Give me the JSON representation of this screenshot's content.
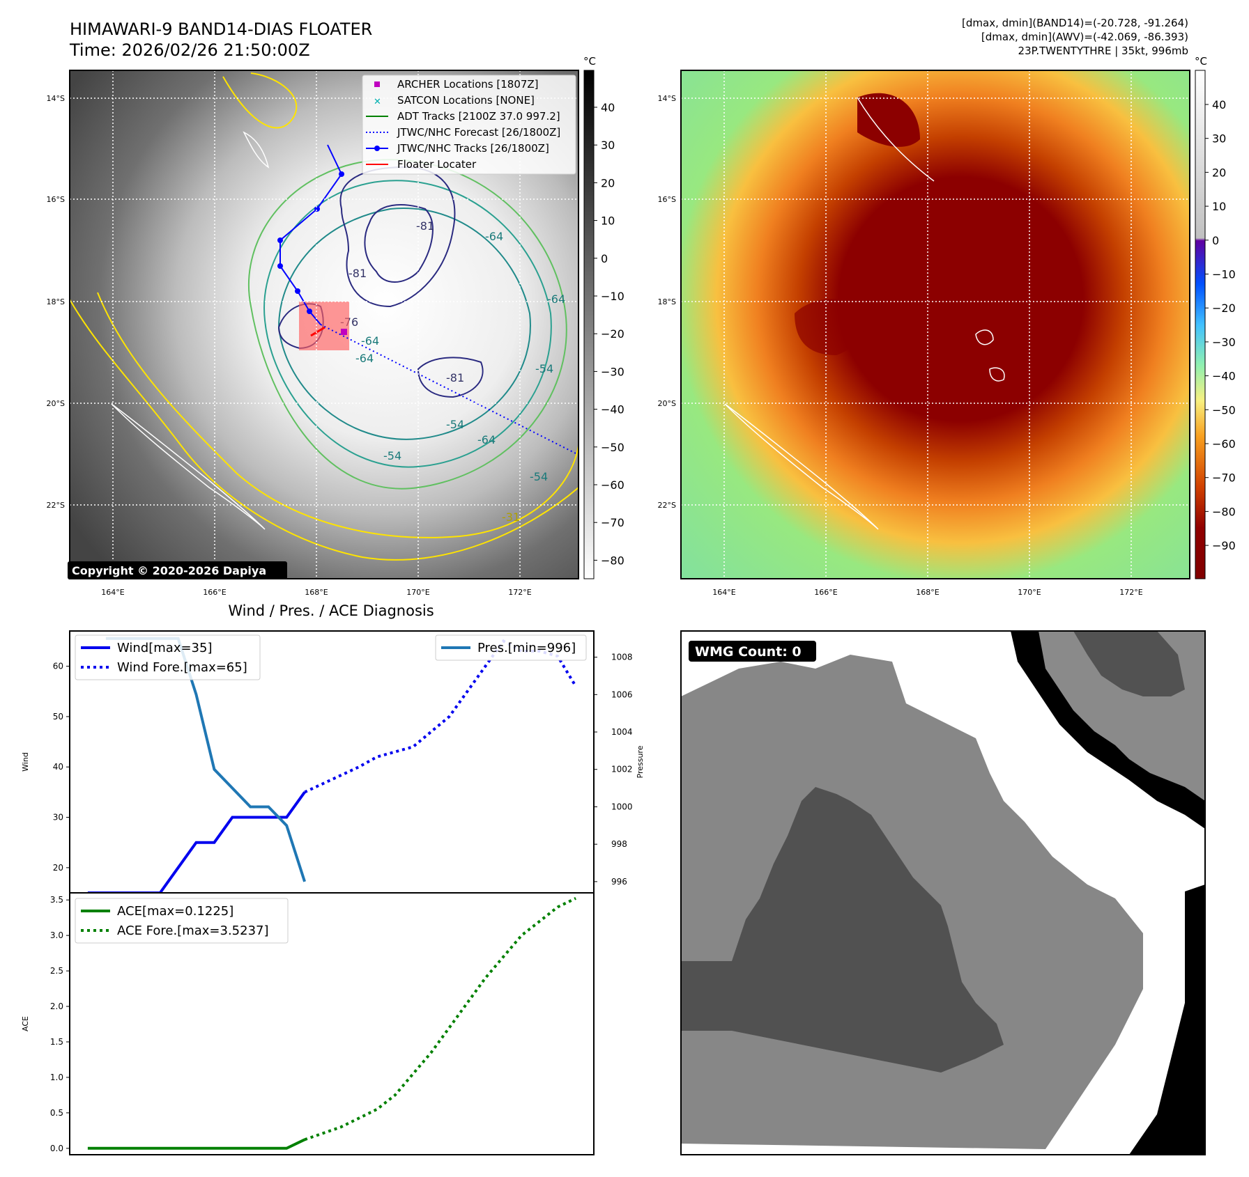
{
  "header": {
    "title": "HIMAWARI-9 BAND14-DIAS FLOATER",
    "time": "Time: 2026/02/26 21:50:00Z",
    "stats_band14": "[dmax, dmin](BAND14)=(-20.728, -91.264)",
    "stats_awv": "[dmax, dmin](AWV)=(-42.069, -86.393)",
    "storm": "23P.TWENTYTHRE | 35kt, 996mb"
  },
  "maps": {
    "lat_ticks": [
      "14°S",
      "16°S",
      "18°S",
      "20°S",
      "22°S"
    ],
    "lon_ticks": [
      "164°E",
      "166°E",
      "168°E",
      "170°E",
      "172°E"
    ],
    "copyright": "Copyright © 2020-2026 Dapiya",
    "contour_labels": [
      "-81",
      "-64",
      "-64",
      "-54",
      "-64",
      "-81",
      "-64",
      "-54",
      "-31",
      "-76",
      "-64",
      "-54",
      "-81",
      "-54"
    ],
    "legend": [
      {
        "label": "ARCHER Locations [1807Z]",
        "color": "#c000c0",
        "marker": "square"
      },
      {
        "label": "SATCON Locations [NONE]",
        "color": "#00b0b0",
        "marker": "x"
      },
      {
        "label": "ADT Tracks [2100Z 37.0 997.2]",
        "color": "#008000",
        "marker": "line"
      },
      {
        "label": "JTWC/NHC Forecast [26/1800Z]",
        "color": "#0000ff",
        "marker": "dotted"
      },
      {
        "label": "JTWC/NHC Tracks [26/1800Z]",
        "color": "#0000ff",
        "marker": "line-dot"
      },
      {
        "label": "Floater Locater",
        "color": "#ff0000",
        "marker": "line"
      }
    ],
    "colorbar_left": {
      "unit": "°C",
      "ticks": [
        "40",
        "30",
        "20",
        "10",
        "0",
        "−10",
        "−20",
        "−30",
        "−40",
        "−50",
        "−60",
        "−70",
        "−80"
      ]
    },
    "colorbar_right": {
      "unit": "°C",
      "ticks": [
        "40",
        "30",
        "20",
        "10",
        "0",
        "−10",
        "−20",
        "−30",
        "−40",
        "−50",
        "−60",
        "−70",
        "−80",
        "−90"
      ]
    }
  },
  "chart_data": [
    {
      "type": "line",
      "title": "Wind / Pres. / ACE Diagnosis",
      "ylabel": "Wind",
      "y2label": "Pressure",
      "ylim": [
        15,
        67
      ],
      "y2lim": [
        995.4,
        1009.4
      ],
      "yticks": [
        20,
        30,
        40,
        50,
        60
      ],
      "y2ticks": [
        996,
        998,
        1000,
        1002,
        1004,
        1006,
        1008
      ],
      "series": [
        {
          "name": "Wind[max=35]",
          "axis": "left",
          "style": "solid",
          "color": "#0000ee",
          "x": [
            0,
            1,
            2,
            3,
            4,
            5,
            6,
            7,
            8,
            9,
            10,
            11,
            12
          ],
          "y": [
            15,
            15,
            15,
            15,
            15,
            20,
            25,
            25,
            30,
            30,
            30,
            30,
            35
          ]
        },
        {
          "name": "Wind Fore.[max=65]",
          "axis": "left",
          "style": "dotted",
          "color": "#0000ee",
          "x": [
            12,
            15,
            16,
            18,
            20,
            21,
            22,
            23,
            24,
            25,
            26,
            27
          ],
          "y": [
            35,
            40,
            42,
            44,
            50,
            55,
            60,
            65,
            63,
            63,
            62,
            56
          ]
        },
        {
          "name": "Pres.[min=996]",
          "axis": "right",
          "style": "solid",
          "color": "#1f77b4",
          "x": [
            1,
            2,
            3,
            4,
            5,
            6,
            7,
            8,
            9,
            10,
            11,
            12
          ],
          "y": [
            1009,
            1009,
            1009,
            1009,
            1009,
            1006,
            1002,
            1001,
            1000,
            1000,
            999,
            996
          ]
        }
      ]
    },
    {
      "type": "line",
      "ylabel": "ACE",
      "ylim": [
        -0.09,
        3.6
      ],
      "yticks": [
        0.0,
        0.5,
        1.0,
        1.5,
        2.0,
        2.5,
        3.0,
        3.5
      ],
      "series": [
        {
          "name": "ACE[max=0.1225]",
          "style": "solid",
          "color": "#008000",
          "x": [
            0,
            11,
            12
          ],
          "y": [
            0,
            0,
            0.1225
          ]
        },
        {
          "name": "ACE Fore.[max=3.5237]",
          "style": "dotted",
          "color": "#008000",
          "x": [
            12,
            14,
            16,
            17,
            18,
            19,
            20,
            21,
            22,
            23,
            24,
            25,
            26,
            27
          ],
          "y": [
            0.1225,
            0.3,
            0.55,
            0.75,
            1.05,
            1.35,
            1.7,
            2.05,
            2.4,
            2.7,
            3.0,
            3.2,
            3.4,
            3.5237
          ]
        }
      ]
    }
  ],
  "wmg": {
    "label": "WMG Count: 0"
  }
}
